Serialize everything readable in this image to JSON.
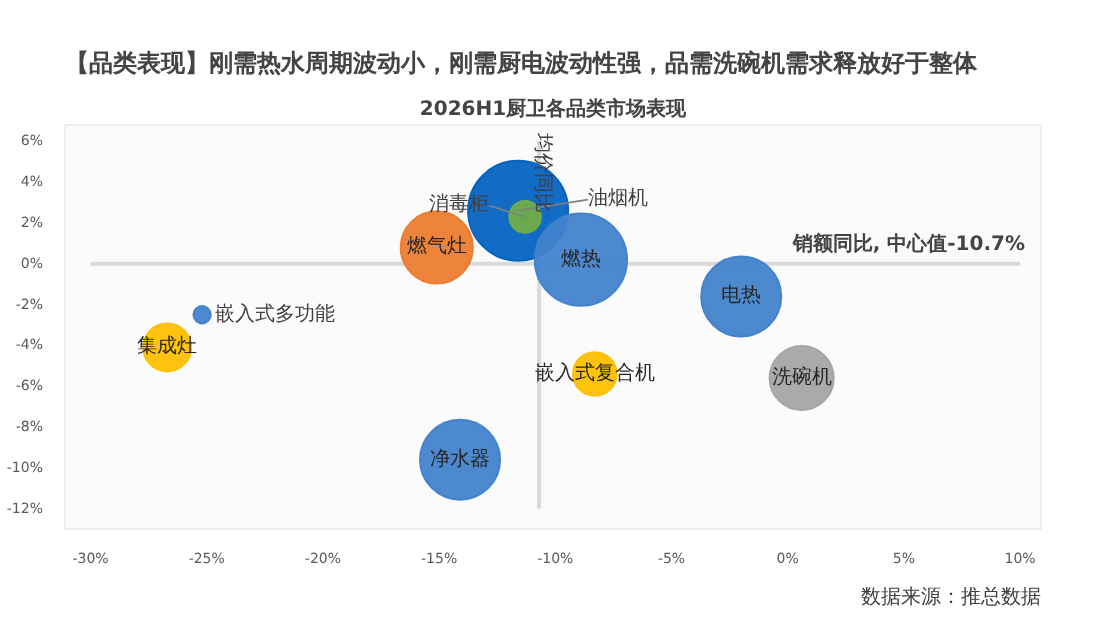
{
  "chart_data": {
    "type": "bubble",
    "title": "【品类表现】刚需热水周期波动小，刚需厨电波动性强，品需洗碗机需求释放好于整体",
    "subtitle": "2026H1厨卫各品类市场表现",
    "xlabel": "销额同比, 中心值-10.7%",
    "ylabel": "均价同比",
    "annotations": [
      "数据来源：推总数据"
    ],
    "xlim": [
      -31.1,
      10.9
    ],
    "ylim": [
      -13,
      6.8
    ],
    "xticks": [
      {
        "value": -30,
        "label": "-30%"
      },
      {
        "value": -25,
        "label": "-25%"
      },
      {
        "value": -20,
        "label": "-20%"
      },
      {
        "value": -15,
        "label": "-15%"
      },
      {
        "value": -10,
        "label": "-10%"
      },
      {
        "value": -5,
        "label": "-5%"
      },
      {
        "value": 0,
        "label": "0%"
      },
      {
        "value": 5,
        "label": "5%"
      },
      {
        "value": 10,
        "label": "10%"
      }
    ],
    "yticks": [
      {
        "value": -12,
        "label": "-12%"
      },
      {
        "value": -10,
        "label": "-10%"
      },
      {
        "value": -8,
        "label": "-8%"
      },
      {
        "value": -6,
        "label": "-6%"
      },
      {
        "value": -4,
        "label": "-4%"
      },
      {
        "value": -2,
        "label": "-2%"
      },
      {
        "value": 0,
        "label": "0%"
      },
      {
        "value": 2,
        "label": "2%"
      },
      {
        "value": 4,
        "label": "4%"
      },
      {
        "value": 6,
        "label": "6%"
      }
    ],
    "ref_lines": [
      {
        "axis": "x",
        "value": -10.7,
        "color": "#d9d9d9"
      },
      {
        "axis": "y",
        "value": 0,
        "color": "#d9d9d9"
      }
    ],
    "grid": false,
    "series": [
      {
        "name": "油烟机",
        "color": "#0563c1",
        "x": [
          -11.6
        ],
        "values": [
          2.6
        ],
        "sizes": [
          1
        ]
      },
      {
        "name": "消毒柜",
        "color": "#70ad47",
        "x": [
          -11.3
        ],
        "values": [
          2.3
        ],
        "sizes": [
          0.1
        ]
      },
      {
        "name": "燃气灶",
        "color": "#ed7d31",
        "x": [
          -15.1
        ],
        "values": [
          0.8
        ],
        "sizes": [
          0.52
        ]
      },
      {
        "name": "燃热",
        "color": "#4283cc",
        "x": [
          -8.9
        ],
        "values": [
          0.2
        ],
        "sizes": [
          0.85
        ]
      },
      {
        "name": "电热",
        "color": "#4283cc",
        "x": [
          -2.0
        ],
        "values": [
          -1.6
        ],
        "sizes": [
          0.64
        ]
      },
      {
        "name": "嵌入式复合机",
        "color": "#ffc000",
        "x": [
          -8.3
        ],
        "values": [
          -5.4
        ],
        "sizes": [
          0.19
        ]
      },
      {
        "name": "洗碗机",
        "color": "#a5a5a5",
        "x": [
          0.6
        ],
        "values": [
          -5.6
        ],
        "sizes": [
          0.41
        ]
      },
      {
        "name": "净水器",
        "color": "#4283cc",
        "x": [
          -14.1
        ],
        "values": [
          -9.6
        ],
        "sizes": [
          0.64
        ]
      },
      {
        "name": "集成灶",
        "color": "#ffc000",
        "x": [
          -26.7
        ],
        "values": [
          -4.1
        ],
        "sizes": [
          0.23
        ]
      },
      {
        "name": "嵌入式多功能",
        "color": "#4283cc",
        "x": [
          -25.2
        ],
        "values": [
          -2.5
        ],
        "sizes": [
          0.03
        ]
      }
    ]
  }
}
